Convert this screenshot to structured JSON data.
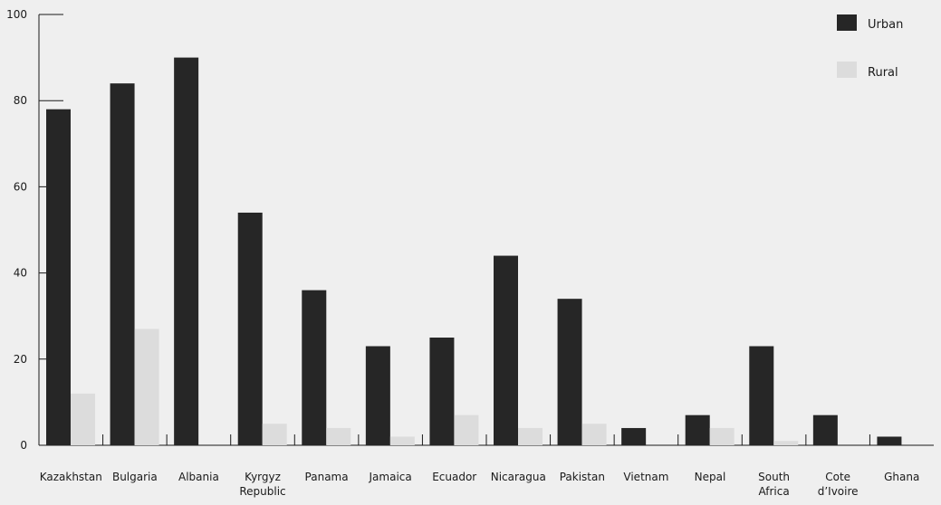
{
  "chart_data": {
    "type": "bar",
    "title": "",
    "xlabel": "",
    "ylabel": "",
    "ylim": [
      0,
      100
    ],
    "yticks": [
      0,
      20,
      40,
      60,
      80,
      100
    ],
    "grid": false,
    "legend_position": "top-right",
    "categories": [
      "Kazakhstan",
      "Bulgaria",
      "Albania",
      "Kyrgyz\nRepublic",
      "Panama",
      "Jamaica",
      "Ecuador",
      "Nicaragua",
      "Pakistan",
      "Vietnam",
      "Nepal",
      "South\nAfrica",
      "Cote\nd’Ivoire",
      "Ghana"
    ],
    "series": [
      {
        "name": "Urban",
        "color": "#262626",
        "values": [
          78,
          84,
          90,
          54,
          36,
          23,
          25,
          44,
          34,
          4,
          7,
          23,
          7,
          2
        ]
      },
      {
        "name": "Rural",
        "color": "#dcdcdc",
        "values": [
          12,
          27,
          0,
          5,
          4,
          2,
          7,
          4,
          5,
          0,
          4,
          1,
          0,
          0
        ]
      }
    ]
  }
}
